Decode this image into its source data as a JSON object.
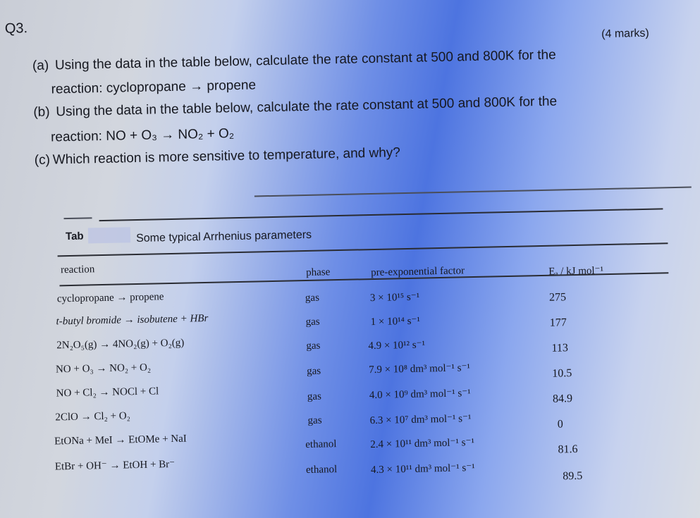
{
  "question": {
    "number": "Q3.",
    "marks": "(4 marks)",
    "part_a_label": "(a)",
    "part_a_line1": "Using the data in the table below, calculate the rate constant at 500 and 800K for the",
    "part_a_line2": "reaction: cyclopropane → propene",
    "part_b_label": "(b)",
    "part_b_line1": "Using the data in the table below, calculate the rate constant at 500 and 800K for the",
    "part_b_line2": "reaction: NO + O₃ → NO₂ + O₂",
    "part_c_label": "(c)",
    "part_c_text": "Which reaction is more sensitive to temperature, and why?"
  },
  "table": {
    "caption_prefix": "Tab",
    "caption_text": "Some typical Arrhenius parameters",
    "headers": {
      "reaction": "reaction",
      "phase": "phase",
      "factor": "pre-exponential factor",
      "ea": "Eₐ / kJ mol⁻¹"
    },
    "rows": [
      {
        "reaction": "cyclopropane → propene",
        "phase": "gas",
        "factor": "3 × 10¹⁵ s⁻¹",
        "ea": "275"
      },
      {
        "reaction": "t-butyl bromide → isobutene + HBr",
        "phase": "gas",
        "factor": "1 × 10¹⁴ s⁻¹",
        "ea": "177"
      },
      {
        "reaction": "2N₂O₅(g) → 4NO₂(g) + O₂(g)",
        "phase": "gas",
        "factor": "4.9 × 10¹² s⁻¹",
        "ea": "113"
      },
      {
        "reaction": "NO + O₃ → NO₂ + O₂",
        "phase": "gas",
        "factor": "7.9 × 10⁸ dm³ mol⁻¹ s⁻¹",
        "ea": "10.5"
      },
      {
        "reaction": "NO + Cl₂ → NOCl + Cl",
        "phase": "gas",
        "factor": "4.0 × 10⁹ dm³ mol⁻¹ s⁻¹",
        "ea": "84.9"
      },
      {
        "reaction": "2ClO → Cl₂ + O₂",
        "phase": "gas",
        "factor": "6.3 × 10⁷ dm³ mol⁻¹ s⁻¹",
        "ea": "0"
      },
      {
        "reaction": "EtONa + MeI → EtOMe + NaI",
        "phase": "ethanol",
        "factor": "2.4 × 10¹¹ dm³ mol⁻¹ s⁻¹",
        "ea": "81.6"
      },
      {
        "reaction": "EtBr + OH⁻ → EtOH + Br⁻",
        "phase": "ethanol",
        "factor": "4.3 × 10¹¹ dm³ mol⁻¹ s⁻¹",
        "ea": "89.5"
      }
    ]
  }
}
